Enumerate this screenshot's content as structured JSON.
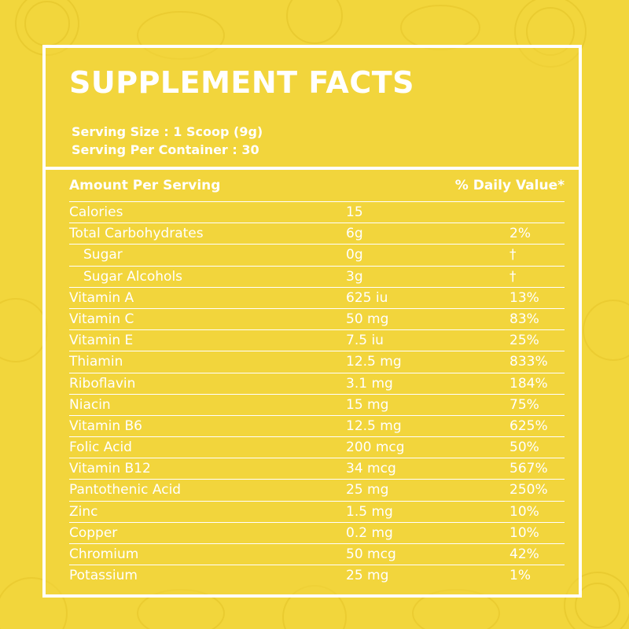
{
  "title": "SUPPLEMENT FACTS",
  "serving_size": "Serving Size : 1 Scoop (9g)",
  "serving_per_container": "Serving Per Container : 30",
  "table_header": {
    "amount_label": "Amount Per Serving",
    "dv_label": "% Daily Value*"
  },
  "colors": {
    "background": "#f2d63c",
    "text": "#ffffff"
  },
  "rows": [
    {
      "name": "Calories",
      "amount": "15",
      "dv": "",
      "indent": false
    },
    {
      "name": "Total Carbohydrates",
      "amount": "6g",
      "dv": "2%",
      "indent": false
    },
    {
      "name": "Sugar",
      "amount": "0g",
      "dv": "†",
      "indent": true
    },
    {
      "name": "Sugar Alcohols",
      "amount": "3g",
      "dv": "†",
      "indent": true
    },
    {
      "name": "Vitamin A",
      "amount": "625 iu",
      "dv": "13%",
      "indent": false
    },
    {
      "name": "Vitamin C",
      "amount": "50 mg",
      "dv": "83%",
      "indent": false
    },
    {
      "name": "Vitamin E",
      "amount": "7.5 iu",
      "dv": "25%",
      "indent": false
    },
    {
      "name": "Thiamin",
      "amount": "12.5 mg",
      "dv": "833%",
      "indent": false
    },
    {
      "name": "Riboflavin",
      "amount": "3.1 mg",
      "dv": "184%",
      "indent": false
    },
    {
      "name": "Niacin",
      "amount": "15 mg",
      "dv": "75%",
      "indent": false
    },
    {
      "name": "Vitamin B6",
      "amount": "12.5 mg",
      "dv": "625%",
      "indent": false
    },
    {
      "name": "Folic Acid",
      "amount": "200 mcg",
      "dv": "50%",
      "indent": false
    },
    {
      "name": "Vitamin B12",
      "amount": "34 mcg",
      "dv": "567%",
      "indent": false
    },
    {
      "name": "Pantothenic Acid",
      "amount": "25 mg",
      "dv": "250%",
      "indent": false
    },
    {
      "name": "Zinc",
      "amount": "1.5 mg",
      "dv": "10%",
      "indent": false
    },
    {
      "name": "Copper",
      "amount": "0.2 mg",
      "dv": "10%",
      "indent": false
    },
    {
      "name": "Chromium",
      "amount": "50 mcg",
      "dv": "42%",
      "indent": false
    },
    {
      "name": "Potassium",
      "amount": "25 mg",
      "dv": "1%",
      "indent": false
    }
  ]
}
